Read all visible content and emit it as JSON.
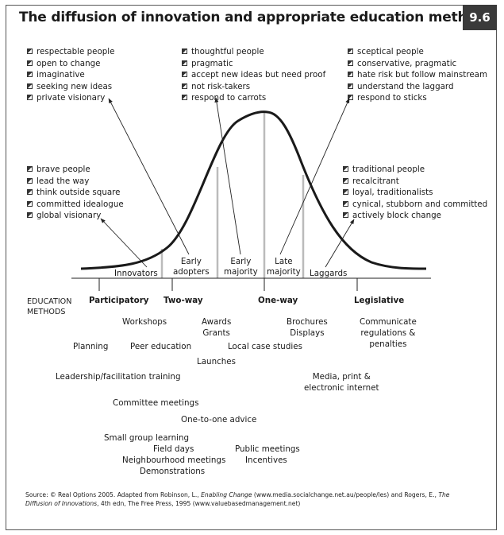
{
  "title": "The diffusion of innovation and appropriate education methods",
  "figure_number": "9.6",
  "trait_groups": {
    "top_left": [
      "respectable people",
      "open to change",
      "imaginative",
      "seeking new ideas",
      "private visionary"
    ],
    "top_center": [
      "thoughtful people",
      "pragmatic",
      "accept new ideas but need proof",
      "not risk-takers",
      "respond to carrots"
    ],
    "top_right": [
      "sceptical people",
      "conservative, pragmatic",
      "hate risk but follow mainstream",
      "understand the laggard",
      "respond to sticks"
    ],
    "mid_left": [
      "brave people",
      "lead the way",
      "think outside square",
      "committed idealogue",
      "global visionary"
    ],
    "mid_right": [
      "traditional people",
      "recalcitrant",
      "loyal, traditionalists",
      "cynical, stubborn and committed",
      "actively block change"
    ]
  },
  "segments": {
    "innovators": "Innovators",
    "early_adopters": [
      "Early",
      "adopters"
    ],
    "early_majority": [
      "Early",
      "majority"
    ],
    "late_majority": [
      "Late",
      "majority"
    ],
    "laggards": "Laggards"
  },
  "education": {
    "label": [
      "EDUCATION",
      "METHODS"
    ],
    "participatory": "Participatory",
    "two_way": "Two-way",
    "one_way": "One-way",
    "legislative": "Legislative"
  },
  "methods": {
    "workshops": "Workshops",
    "awards_grants": [
      "Awards",
      "Grants"
    ],
    "brochures_displays": [
      "Brochures",
      "Displays"
    ],
    "communicate": [
      "Communicate",
      "regulations &",
      "penalties"
    ],
    "planning": "Planning",
    "peer_education": "Peer education",
    "local_case_studies": "Local case studies",
    "launches": "Launches",
    "leadership": "Leadership/facilitation training",
    "media": [
      "Media, print &",
      "electronic internet"
    ],
    "committee": "Committee meetings",
    "one_to_one": "One-to-one advice",
    "small_group": "Small group learning",
    "field_days": "Field days",
    "neighbourhood": "Neighbourhood meetings",
    "demonstrations": "Demonstrations",
    "public_meetings": "Public meetings",
    "incentives": "Incentives"
  },
  "source": {
    "prefix": "Source: © Real Options 2005. Adapted from Robinson, L., ",
    "book1": "Enabling Change",
    "mid": " (www.media.socialchange.net.au/people/les) and Rogers, E., ",
    "book2": "The Diffusion of Innovations",
    "suffix": ", 4th edn, The Free Press, 1995 (www.valuebasedmanagement.net)"
  }
}
